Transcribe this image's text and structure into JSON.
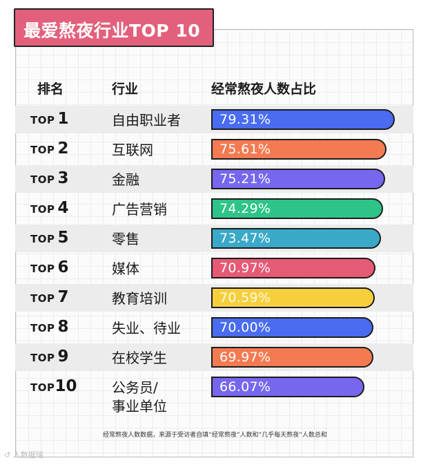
{
  "title": "最爱熬夜行业TOP 10",
  "headers": {
    "rank": "排名",
    "industry": "行业",
    "ratio": "经常熬夜人数占比"
  },
  "rank_prefix": "TOP",
  "note": "经常熬夜人数数据，来源于受访者自填“经常熬夜”人数和“几乎每天熬夜”人数总和",
  "watermark": "↺ 人数据瑞",
  "chart_data": {
    "type": "bar",
    "orientation": "horizontal",
    "title": "最爱熬夜行业TOP 10",
    "xlabel": "经常熬夜人数占比",
    "xlim": [
      0,
      85
    ],
    "rows": [
      {
        "rank": "1",
        "industry": [
          "自由职业者"
        ],
        "value": 79.31,
        "label": "79.31%",
        "color": "#4a6cf0",
        "text_color": "#ffffff"
      },
      {
        "rank": "2",
        "industry": [
          "互联网"
        ],
        "value": 75.61,
        "label": "75.61%",
        "color": "#f47a52",
        "text_color": "#ffffff"
      },
      {
        "rank": "3",
        "industry": [
          "金融"
        ],
        "value": 75.21,
        "label": "75.21%",
        "color": "#7767ee",
        "text_color": "#ffffff"
      },
      {
        "rank": "4",
        "industry": [
          "广告营销"
        ],
        "value": 74.29,
        "label": "74.29%",
        "color": "#2ec489",
        "text_color": "#ffffff"
      },
      {
        "rank": "5",
        "industry": [
          "零售"
        ],
        "value": 73.47,
        "label": "73.47%",
        "color": "#3aa9c8",
        "text_color": "#ffffff"
      },
      {
        "rank": "6",
        "industry": [
          "媒体"
        ],
        "value": 70.97,
        "label": "70.97%",
        "color": "#e65a76",
        "text_color": "#ffffff"
      },
      {
        "rank": "7",
        "industry": [
          "教育培训"
        ],
        "value": 70.59,
        "label": "70.59%",
        "color": "#f6cf3c",
        "text_color": "#fffbe6"
      },
      {
        "rank": "8",
        "industry": [
          "失业、待业"
        ],
        "value": 70.0,
        "label": "70.00%",
        "color": "#4a6cf0",
        "text_color": "#ffffff"
      },
      {
        "rank": "9",
        "industry": [
          "在校学生"
        ],
        "value": 69.97,
        "label": "69.97%",
        "color": "#f47a52",
        "text_color": "#ffffff"
      },
      {
        "rank": "10",
        "industry": [
          "公务员/",
          "事业单位"
        ],
        "value": 66.07,
        "label": "66.07%",
        "color": "#7767ee",
        "text_color": "#ffffff"
      }
    ]
  }
}
